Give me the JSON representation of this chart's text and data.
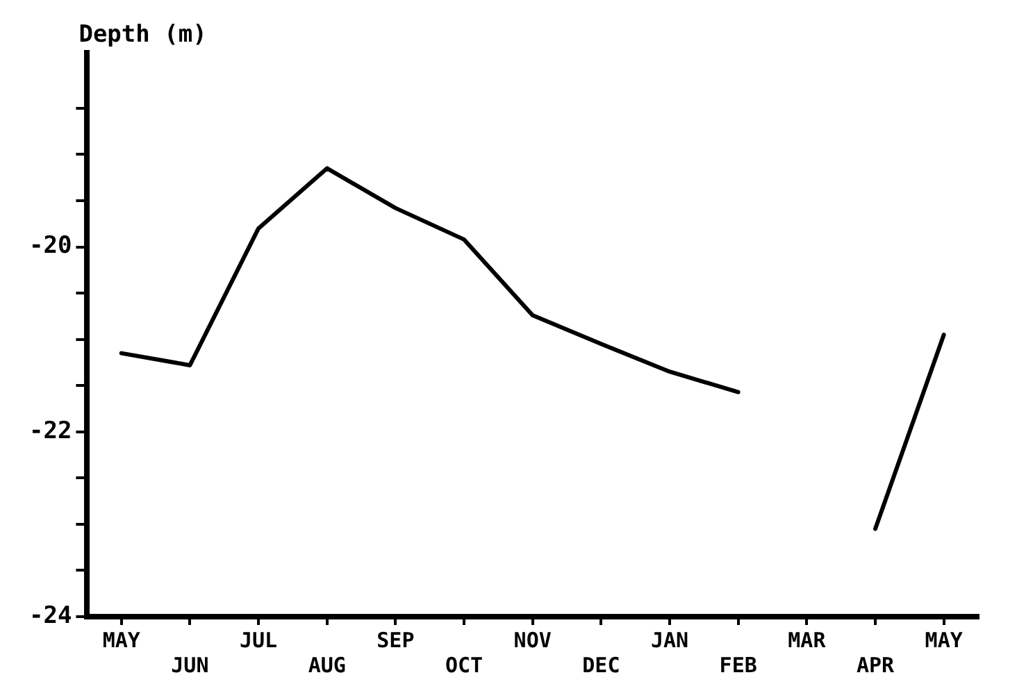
{
  "chart_data": {
    "type": "line",
    "ylabel": "Depth (m)",
    "categories": [
      "MAY",
      "JUN",
      "JUL",
      "AUG",
      "SEP",
      "OCT",
      "NOV",
      "DEC",
      "JAN",
      "FEB",
      "MAR",
      "APR",
      "MAY"
    ],
    "series": [
      {
        "color": "#000000",
        "values": [
          -21.15,
          -21.28,
          -19.8,
          -19.15,
          -19.58,
          -19.92,
          -20.74,
          -21.05,
          -21.35,
          -21.57,
          null,
          -23.05,
          -20.95
        ]
      }
    ],
    "ylim": [
      -24,
      -17.9
    ],
    "yticks": [
      -24,
      {
        "value": -23.5,
        "label": null
      },
      {
        "value": -23,
        "label": null
      },
      {
        "value": -22.5,
        "label": null
      },
      -22,
      {
        "value": -21.5,
        "label": null
      },
      {
        "value": -21,
        "label": null
      },
      {
        "value": -20.5,
        "label": null
      },
      -20,
      {
        "value": -19.5,
        "label": null
      },
      {
        "value": -19,
        "label": null
      },
      {
        "value": -18.5,
        "label": null
      }
    ],
    "grid": false,
    "legend": false,
    "marker": "none",
    "line_style": "solid"
  }
}
